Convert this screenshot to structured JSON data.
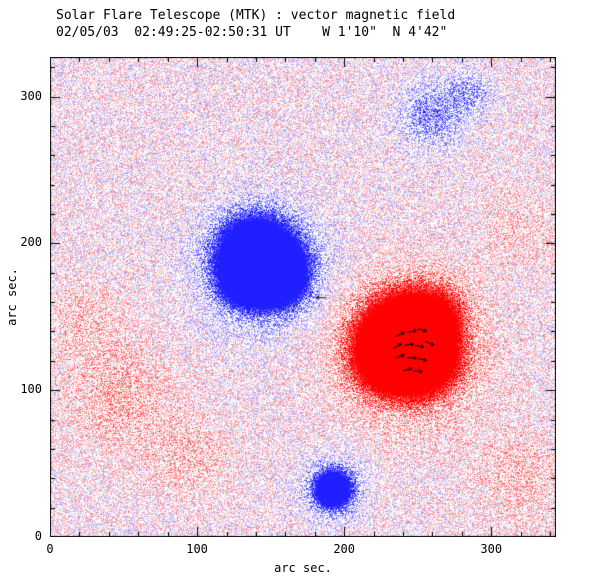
{
  "title": "Solar Flare Telescope (MTK) : vector magnetic field",
  "subtitle": "02/05/03  02:49:25-02:50:31 UT    W 1'10\"  N 4'42\"",
  "xlabel": "arc sec.",
  "ylabel": "arc sec.",
  "chart_data": {
    "type": "heatmap",
    "title": "Solar Flare Telescope (MTK) : vector magnetic field",
    "subtitle": "02/05/03  02:49:25-02:50:31 UT    W 1'10\"  N 4'42\"",
    "xlabel": "arc sec.",
    "ylabel": "arc sec.",
    "xlim": [
      0,
      344
    ],
    "ylim": [
      0,
      327
    ],
    "xticks": [
      0,
      100,
      200,
      300
    ],
    "yticks": [
      0,
      100,
      200,
      300
    ],
    "minor_tick_step": 20,
    "grid": false,
    "colors": {
      "positive": "#ff0000",
      "negative": "#4444ff",
      "axis": "#000000",
      "background": "#ffffff"
    },
    "noise": {
      "amplitude": 0.33,
      "bias": 0.02,
      "threshold": 0.1,
      "gain": 2.0,
      "seed": 20030502
    },
    "blobs": [
      {
        "x": 140,
        "y": 192,
        "s": 14,
        "a": -2.4
      },
      {
        "x": 153,
        "y": 179,
        "s": 12,
        "a": -2.0
      },
      {
        "x": 132,
        "y": 175,
        "s": 10,
        "a": -1.3
      },
      {
        "x": 144,
        "y": 184,
        "s": 26,
        "a": -0.55
      },
      {
        "x": 241,
        "y": 135,
        "s": 16,
        "a": 2.4
      },
      {
        "x": 252,
        "y": 122,
        "s": 13,
        "a": 1.7
      },
      {
        "x": 229,
        "y": 121,
        "s": 12,
        "a": 1.3
      },
      {
        "x": 242,
        "y": 128,
        "s": 30,
        "a": 0.6
      },
      {
        "x": 262,
        "y": 153,
        "s": 13,
        "a": 0.5
      },
      {
        "x": 192,
        "y": 33,
        "s": 7,
        "a": -1.7
      },
      {
        "x": 192,
        "y": 33,
        "s": 13,
        "a": -0.45
      },
      {
        "x": 258,
        "y": 287,
        "s": 14,
        "a": -0.33
      },
      {
        "x": 285,
        "y": 303,
        "s": 11,
        "a": -0.25
      },
      {
        "x": 45,
        "y": 95,
        "s": 26,
        "a": 0.17
      },
      {
        "x": 95,
        "y": 55,
        "s": 20,
        "a": 0.14
      },
      {
        "x": 25,
        "y": 150,
        "s": 18,
        "a": 0.12
      },
      {
        "x": 320,
        "y": 42,
        "s": 24,
        "a": 0.13
      },
      {
        "x": 318,
        "y": 208,
        "s": 20,
        "a": 0.1
      }
    ],
    "vectors": [
      {
        "x": 238,
        "y": 138,
        "a": 25
      },
      {
        "x": 246,
        "y": 140,
        "a": 10
      },
      {
        "x": 253,
        "y": 141,
        "a": -15
      },
      {
        "x": 236,
        "y": 130,
        "a": 30
      },
      {
        "x": 244,
        "y": 131,
        "a": 8
      },
      {
        "x": 251,
        "y": 130,
        "a": -8
      },
      {
        "x": 258,
        "y": 132,
        "a": -25
      },
      {
        "x": 238,
        "y": 123,
        "a": 18
      },
      {
        "x": 246,
        "y": 122,
        "a": 0
      },
      {
        "x": 253,
        "y": 121,
        "a": -14
      },
      {
        "x": 243,
        "y": 114,
        "a": 12
      },
      {
        "x": 250,
        "y": 113,
        "a": -6
      },
      {
        "x": 184,
        "y": 163,
        "a": 180
      }
    ]
  }
}
